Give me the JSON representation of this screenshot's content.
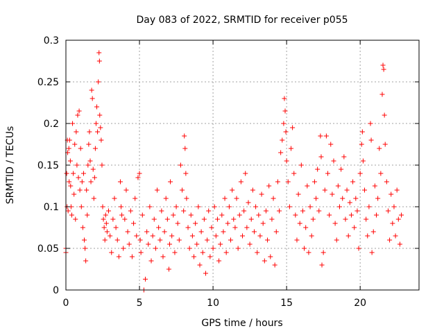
{
  "chart_data": {
    "type": "scatter",
    "title": "Day 083 of 2022, SRMTID for receiver p055",
    "xlabel": "GPS time / hours",
    "ylabel": "SRMTID / TECUs",
    "xlim": [
      0,
      24
    ],
    "ylim": [
      0,
      0.3
    ],
    "xticks": [
      0,
      5,
      10,
      15,
      20
    ],
    "xtick_labels": [
      "0",
      "5",
      "10",
      "15",
      "20"
    ],
    "yticks": [
      0,
      0.05,
      0.1,
      0.15,
      0.2,
      0.25,
      0.3
    ],
    "ytick_labels": [
      "0",
      "0.05",
      "0.1",
      "0.15",
      "0.2",
      "0.25",
      "0.3"
    ],
    "grid": true,
    "marker": "+",
    "color": "#ff0000",
    "series": [
      {
        "name": "SRMTID",
        "points": [
          [
            0.0,
            0.045
          ],
          [
            0.0,
            0.05
          ],
          [
            0.05,
            0.14
          ],
          [
            0.08,
            0.1
          ],
          [
            0.1,
            0.18
          ],
          [
            0.12,
            0.165
          ],
          [
            0.15,
            0.095
          ],
          [
            0.2,
            0.17
          ],
          [
            0.22,
            0.13
          ],
          [
            0.25,
            0.18
          ],
          [
            0.3,
            0.155
          ],
          [
            0.32,
            0.125
          ],
          [
            0.35,
            0.1
          ],
          [
            0.4,
            0.09
          ],
          [
            0.45,
            0.2
          ],
          [
            0.5,
            0.14
          ],
          [
            0.55,
            0.115
          ],
          [
            0.6,
            0.175
          ],
          [
            0.65,
            0.085
          ],
          [
            0.7,
            0.19
          ],
          [
            0.75,
            0.15
          ],
          [
            0.8,
            0.21
          ],
          [
            0.85,
            0.135
          ],
          [
            0.9,
            0.215
          ],
          [
            0.95,
            0.12
          ],
          [
            1.0,
            0.17
          ],
          [
            1.05,
            0.1
          ],
          [
            1.1,
            0.13
          ],
          [
            1.15,
            0.075
          ],
          [
            1.2,
            0.14
          ],
          [
            1.25,
            0.06
          ],
          [
            1.3,
            0.05
          ],
          [
            1.35,
            0.035
          ],
          [
            1.4,
            0.12
          ],
          [
            1.45,
            0.09
          ],
          [
            1.5,
            0.15
          ],
          [
            1.55,
            0.175
          ],
          [
            1.6,
            0.19
          ],
          [
            1.65,
            0.155
          ],
          [
            1.7,
            0.13
          ],
          [
            1.75,
            0.24
          ],
          [
            1.8,
            0.23
          ],
          [
            1.85,
            0.145
          ],
          [
            1.9,
            0.11
          ],
          [
            1.95,
            0.135
          ],
          [
            2.0,
            0.17
          ],
          [
            2.05,
            0.2
          ],
          [
            2.1,
            0.22
          ],
          [
            2.15,
            0.19
          ],
          [
            2.2,
            0.25
          ],
          [
            2.25,
            0.285
          ],
          [
            2.28,
            0.275
          ],
          [
            2.3,
            0.21
          ],
          [
            2.35,
            0.195
          ],
          [
            2.4,
            0.18
          ],
          [
            2.45,
            0.15
          ],
          [
            2.5,
            0.1
          ],
          [
            2.55,
            0.085
          ],
          [
            2.6,
            0.075
          ],
          [
            2.65,
            0.06
          ],
          [
            2.7,
            0.09
          ],
          [
            2.75,
            0.08
          ],
          [
            2.8,
            0.07
          ],
          [
            2.9,
            0.095
          ],
          [
            3.0,
            0.065
          ],
          [
            3.1,
            0.045
          ],
          [
            3.2,
            0.085
          ],
          [
            3.3,
            0.11
          ],
          [
            3.4,
            0.075
          ],
          [
            3.5,
            0.06
          ],
          [
            3.6,
            0.04
          ],
          [
            3.7,
            0.13
          ],
          [
            3.75,
            0.1
          ],
          [
            3.8,
            0.09
          ],
          [
            3.9,
            0.05
          ],
          [
            4.0,
            0.085
          ],
          [
            4.1,
            0.12
          ],
          [
            4.2,
            0.07
          ],
          [
            4.3,
            0.055
          ],
          [
            4.4,
            0.095
          ],
          [
            4.5,
            0.04
          ],
          [
            4.6,
            0.08
          ],
          [
            4.7,
            0.11
          ],
          [
            4.8,
            0.065
          ],
          [
            4.9,
            0.135
          ],
          [
            5.0,
            0.14
          ],
          [
            5.05,
            0.06
          ],
          [
            5.1,
            0.045
          ],
          [
            5.2,
            0.09
          ],
          [
            5.3,
            0.0
          ],
          [
            5.4,
            0.013
          ],
          [
            5.5,
            0.07
          ],
          [
            5.6,
            0.055
          ],
          [
            5.7,
            0.1
          ],
          [
            5.8,
            0.035
          ],
          [
            5.9,
            0.065
          ],
          [
            6.0,
            0.085
          ],
          [
            6.1,
            0.05
          ],
          [
            6.2,
            0.12
          ],
          [
            6.3,
            0.075
          ],
          [
            6.4,
            0.06
          ],
          [
            6.5,
            0.095
          ],
          [
            6.6,
            0.04
          ],
          [
            6.7,
            0.07
          ],
          [
            6.8,
            0.11
          ],
          [
            6.9,
            0.085
          ],
          [
            7.0,
            0.025
          ],
          [
            7.05,
            0.055
          ],
          [
            7.1,
            0.13
          ],
          [
            7.2,
            0.065
          ],
          [
            7.3,
            0.09
          ],
          [
            7.4,
            0.045
          ],
          [
            7.5,
            0.1
          ],
          [
            7.6,
            0.08
          ],
          [
            7.7,
            0.06
          ],
          [
            7.8,
            0.15
          ],
          [
            7.9,
            0.12
          ],
          [
            8.0,
            0.095
          ],
          [
            8.05,
            0.185
          ],
          [
            8.1,
            0.17
          ],
          [
            8.15,
            0.14
          ],
          [
            8.2,
            0.11
          ],
          [
            8.3,
            0.075
          ],
          [
            8.4,
            0.05
          ],
          [
            8.5,
            0.09
          ],
          [
            8.6,
            0.065
          ],
          [
            8.7,
            0.04
          ],
          [
            8.8,
            0.08
          ],
          [
            8.9,
            0.055
          ],
          [
            9.0,
            0.1
          ],
          [
            9.1,
            0.03
          ],
          [
            9.2,
            0.07
          ],
          [
            9.3,
            0.045
          ],
          [
            9.4,
            0.085
          ],
          [
            9.5,
            0.02
          ],
          [
            9.6,
            0.06
          ],
          [
            9.7,
            0.095
          ],
          [
            9.8,
            0.04
          ],
          [
            9.9,
            0.075
          ],
          [
            10.0,
            0.05
          ],
          [
            10.1,
            0.1
          ],
          [
            10.2,
            0.065
          ],
          [
            10.3,
            0.085
          ],
          [
            10.4,
            0.035
          ],
          [
            10.5,
            0.055
          ],
          [
            10.6,
            0.09
          ],
          [
            10.7,
            0.07
          ],
          [
            10.8,
            0.11
          ],
          [
            10.9,
            0.045
          ],
          [
            11.0,
            0.08
          ],
          [
            11.1,
            0.1
          ],
          [
            11.2,
            0.06
          ],
          [
            11.3,
            0.12
          ],
          [
            11.4,
            0.085
          ],
          [
            11.5,
            0.075
          ],
          [
            11.6,
            0.11
          ],
          [
            11.7,
            0.05
          ],
          [
            11.8,
            0.09
          ],
          [
            11.9,
            0.13
          ],
          [
            12.0,
            0.065
          ],
          [
            12.1,
            0.095
          ],
          [
            12.2,
            0.14
          ],
          [
            12.3,
            0.075
          ],
          [
            12.4,
            0.105
          ],
          [
            12.5,
            0.055
          ],
          [
            12.6,
            0.085
          ],
          [
            12.7,
            0.12
          ],
          [
            12.8,
            0.07
          ],
          [
            12.9,
            0.1
          ],
          [
            13.0,
            0.045
          ],
          [
            13.1,
            0.09
          ],
          [
            13.2,
            0.065
          ],
          [
            13.3,
            0.115
          ],
          [
            13.4,
            0.08
          ],
          [
            13.5,
            0.035
          ],
          [
            13.6,
            0.095
          ],
          [
            13.7,
            0.06
          ],
          [
            13.8,
            0.125
          ],
          [
            13.9,
            0.04
          ],
          [
            14.0,
            0.085
          ],
          [
            14.1,
            0.11
          ],
          [
            14.2,
            0.03
          ],
          [
            14.3,
            0.07
          ],
          [
            14.4,
            0.13
          ],
          [
            14.5,
            0.095
          ],
          [
            14.6,
            0.165
          ],
          [
            14.7,
            0.18
          ],
          [
            14.8,
            0.2
          ],
          [
            14.85,
            0.23
          ],
          [
            14.9,
            0.215
          ],
          [
            14.95,
            0.19
          ],
          [
            15.0,
            0.155
          ],
          [
            15.1,
            0.13
          ],
          [
            15.2,
            0.1
          ],
          [
            15.3,
            0.17
          ],
          [
            15.4,
            0.195
          ],
          [
            15.5,
            0.14
          ],
          [
            15.6,
            0.09
          ],
          [
            15.7,
            0.06
          ],
          [
            15.8,
            0.115
          ],
          [
            15.9,
            0.08
          ],
          [
            16.0,
            0.15
          ],
          [
            16.1,
            0.095
          ],
          [
            16.2,
            0.05
          ],
          [
            16.3,
            0.075
          ],
          [
            16.4,
            0.125
          ],
          [
            16.5,
            0.045
          ],
          [
            16.6,
            0.1
          ],
          [
            16.7,
            0.065
          ],
          [
            16.8,
            0.085
          ],
          [
            16.9,
            0.13
          ],
          [
            17.0,
            0.11
          ],
          [
            17.1,
            0.145
          ],
          [
            17.2,
            0.095
          ],
          [
            17.3,
            0.185
          ],
          [
            17.35,
            0.16
          ],
          [
            17.4,
            0.03
          ],
          [
            17.5,
            0.045
          ],
          [
            17.6,
            0.12
          ],
          [
            17.7,
            0.185
          ],
          [
            17.8,
            0.14
          ],
          [
            17.9,
            0.09
          ],
          [
            18.0,
            0.175
          ],
          [
            18.1,
            0.115
          ],
          [
            18.2,
            0.155
          ],
          [
            18.3,
            0.08
          ],
          [
            18.4,
            0.06
          ],
          [
            18.5,
            0.125
          ],
          [
            18.6,
            0.1
          ],
          [
            18.7,
            0.145
          ],
          [
            18.8,
            0.11
          ],
          [
            18.9,
            0.16
          ],
          [
            19.0,
            0.085
          ],
          [
            19.1,
            0.12
          ],
          [
            19.2,
            0.065
          ],
          [
            19.3,
            0.105
          ],
          [
            19.4,
            0.09
          ],
          [
            19.5,
            0.13
          ],
          [
            19.6,
            0.075
          ],
          [
            19.7,
            0.11
          ],
          [
            19.8,
            0.095
          ],
          [
            19.9,
            0.05
          ],
          [
            20.0,
            0.14
          ],
          [
            20.1,
            0.175
          ],
          [
            20.15,
            0.19
          ],
          [
            20.2,
            0.155
          ],
          [
            20.3,
            0.12
          ],
          [
            20.4,
            0.085
          ],
          [
            20.5,
            0.065
          ],
          [
            20.6,
            0.1
          ],
          [
            20.7,
            0.2
          ],
          [
            20.75,
            0.18
          ],
          [
            20.8,
            0.045
          ],
          [
            20.9,
            0.07
          ],
          [
            21.0,
            0.125
          ],
          [
            21.1,
            0.09
          ],
          [
            21.2,
            0.11
          ],
          [
            21.3,
            0.17
          ],
          [
            21.4,
            0.14
          ],
          [
            21.5,
            0.235
          ],
          [
            21.55,
            0.27
          ],
          [
            21.6,
            0.265
          ],
          [
            21.65,
            0.21
          ],
          [
            21.7,
            0.175
          ],
          [
            21.8,
            0.13
          ],
          [
            21.9,
            0.095
          ],
          [
            22.0,
            0.06
          ],
          [
            22.1,
            0.115
          ],
          [
            22.2,
            0.08
          ],
          [
            22.3,
            0.1
          ],
          [
            22.4,
            0.065
          ],
          [
            22.5,
            0.12
          ],
          [
            22.6,
            0.085
          ],
          [
            22.7,
            0.055
          ],
          [
            22.8,
            0.09
          ]
        ]
      }
    ]
  }
}
